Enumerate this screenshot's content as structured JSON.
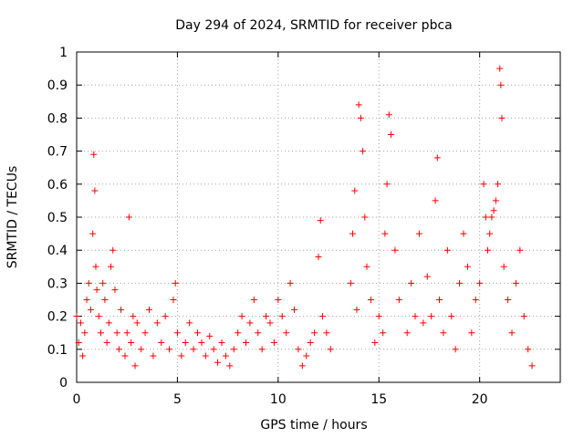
{
  "chart_data": {
    "type": "scatter",
    "title": "Day 294 of 2024, SRMTID for receiver pbca",
    "xlabel": "GPS time / hours",
    "ylabel": "SRMTID / TECUs",
    "xlim": [
      0,
      24
    ],
    "ylim": [
      0,
      1
    ],
    "xticks": [
      0,
      5,
      10,
      15,
      20
    ],
    "xtick_labels": [
      "0",
      "5",
      "10",
      "15",
      "20"
    ],
    "yticks": [
      0,
      0.1,
      0.2,
      0.3,
      0.4,
      0.5,
      0.6,
      0.7,
      0.8,
      0.9,
      1
    ],
    "ytick_labels": [
      "0",
      "0.1",
      "0.2",
      "0.3",
      "0.4",
      "0.5",
      "0.6",
      "0.7",
      "0.8",
      "0.9",
      "1"
    ],
    "grid": true,
    "marker": "+",
    "series": [
      {
        "name": "SRMTID",
        "color": "#ff0000",
        "x": [
          0.0,
          0.1,
          0.2,
          0.3,
          0.4,
          0.5,
          0.6,
          0.7,
          0.8,
          0.85,
          0.9,
          0.95,
          1.0,
          1.1,
          1.2,
          1.3,
          1.4,
          1.5,
          1.6,
          1.7,
          1.8,
          1.9,
          2.0,
          2.1,
          2.2,
          2.4,
          2.5,
          2.6,
          2.7,
          2.8,
          2.9,
          3.0,
          3.2,
          3.4,
          3.6,
          3.8,
          4.0,
          4.2,
          4.4,
          4.6,
          4.8,
          4.9,
          5.0,
          5.2,
          5.4,
          5.6,
          5.8,
          6.0,
          6.2,
          6.4,
          6.6,
          6.8,
          7.0,
          7.2,
          7.4,
          7.6,
          7.8,
          8.0,
          8.2,
          8.4,
          8.6,
          8.8,
          9.0,
          9.2,
          9.4,
          9.6,
          9.8,
          10.0,
          10.2,
          10.4,
          10.6,
          10.8,
          11.0,
          11.2,
          11.4,
          11.6,
          11.8,
          12.0,
          12.1,
          12.2,
          12.4,
          12.6,
          13.6,
          13.7,
          13.8,
          13.9,
          14.0,
          14.1,
          14.2,
          14.3,
          14.4,
          14.6,
          14.8,
          15.0,
          15.2,
          15.3,
          15.4,
          15.5,
          15.6,
          15.8,
          16.0,
          16.4,
          16.6,
          16.8,
          17.0,
          17.2,
          17.4,
          17.6,
          17.8,
          17.9,
          18.0,
          18.2,
          18.4,
          18.6,
          18.8,
          19.0,
          19.2,
          19.4,
          19.6,
          19.8,
          20.0,
          20.2,
          20.3,
          20.4,
          20.5,
          20.6,
          20.7,
          20.8,
          20.9,
          21.0,
          21.05,
          21.1,
          21.2,
          21.4,
          21.6,
          21.8,
          22.0,
          22.2,
          22.4,
          22.6
        ],
        "y": [
          0.2,
          0.12,
          0.18,
          0.08,
          0.15,
          0.25,
          0.3,
          0.22,
          0.45,
          0.69,
          0.58,
          0.35,
          0.28,
          0.2,
          0.15,
          0.3,
          0.25,
          0.12,
          0.18,
          0.35,
          0.4,
          0.28,
          0.15,
          0.1,
          0.22,
          0.08,
          0.15,
          0.5,
          0.12,
          0.2,
          0.05,
          0.18,
          0.1,
          0.15,
          0.22,
          0.08,
          0.18,
          0.12,
          0.2,
          0.1,
          0.25,
          0.3,
          0.15,
          0.08,
          0.12,
          0.18,
          0.1,
          0.15,
          0.12,
          0.08,
          0.14,
          0.1,
          0.06,
          0.12,
          0.08,
          0.05,
          0.1,
          0.15,
          0.2,
          0.12,
          0.18,
          0.25,
          0.15,
          0.1,
          0.2,
          0.18,
          0.12,
          0.25,
          0.2,
          0.15,
          0.3,
          0.22,
          0.1,
          0.05,
          0.08,
          0.12,
          0.15,
          0.38,
          0.49,
          0.2,
          0.15,
          0.1,
          0.3,
          0.45,
          0.58,
          0.22,
          0.84,
          0.8,
          0.7,
          0.5,
          0.35,
          0.25,
          0.12,
          0.2,
          0.15,
          0.45,
          0.6,
          0.81,
          0.75,
          0.4,
          0.25,
          0.15,
          0.3,
          0.2,
          0.45,
          0.18,
          0.32,
          0.2,
          0.55,
          0.68,
          0.25,
          0.15,
          0.4,
          0.2,
          0.1,
          0.3,
          0.45,
          0.35,
          0.15,
          0.25,
          0.3,
          0.6,
          0.5,
          0.4,
          0.45,
          0.5,
          0.52,
          0.55,
          0.6,
          0.95,
          0.9,
          0.8,
          0.35,
          0.25,
          0.15,
          0.3,
          0.4,
          0.2,
          0.1,
          0.05
        ]
      }
    ]
  }
}
